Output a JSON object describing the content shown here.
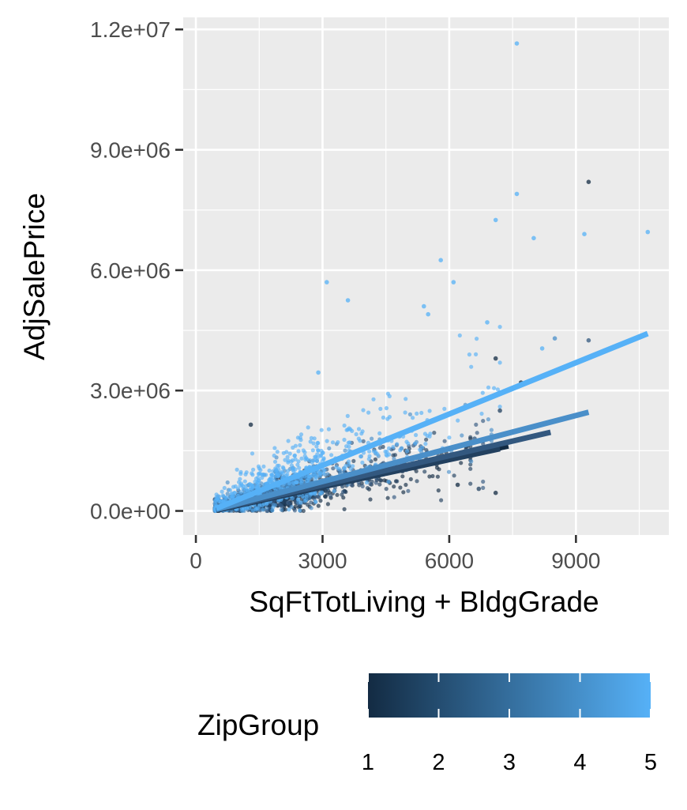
{
  "chart_data": {
    "type": "scatter",
    "xlabel": "SqFtTotLiving + BldgGrade",
    "ylabel": "AdjSalePrice",
    "xlim": [
      -300,
      11200
    ],
    "ylim": [
      -600000,
      12300000
    ],
    "x_ticks": [
      0,
      3000,
      6000,
      9000
    ],
    "x_tick_labels": [
      "0",
      "3000",
      "6000",
      "9000"
    ],
    "y_ticks": [
      0,
      3000000,
      6000000,
      9000000,
      12000000
    ],
    "y_tick_labels": [
      "0.0e+00",
      "3.0e+06",
      "6.0e+06",
      "9.0e+06",
      "1.2e+07"
    ],
    "grid": true,
    "legend": {
      "title": "ZipGroup",
      "type": "colorbar",
      "position": "bottom",
      "min": 1,
      "max": 5,
      "breaks": [
        1,
        2,
        3,
        4,
        5
      ],
      "break_labels": [
        "1",
        "2",
        "3",
        "4",
        "5"
      ],
      "color_low": "#132b43",
      "color_high": "#56b1f7"
    },
    "colors": {
      "panel": "#ebebeb",
      "grid": "#ffffff",
      "group_1": "#132b43",
      "group_2": "#22405f",
      "group_3": "#33587f",
      "group_4": "#4a8fc9",
      "group_5": "#56b1f7"
    },
    "trend_lines": [
      {
        "group": 1,
        "x": [
          480,
          7400
        ],
        "y": [
          20000,
          1620000
        ]
      },
      {
        "group": 2,
        "x": [
          480,
          7200
        ],
        "y": [
          30000,
          1550000
        ]
      },
      {
        "group": 3,
        "x": [
          480,
          8400
        ],
        "y": [
          30000,
          1960000
        ]
      },
      {
        "group": 4,
        "x": [
          480,
          9300
        ],
        "y": [
          40000,
          2460000
        ]
      },
      {
        "group": 5,
        "x": [
          480,
          10700
        ],
        "y": [
          60000,
          4420000
        ]
      }
    ],
    "outliers": [
      {
        "group": 5,
        "x": 7600,
        "y": 11650000
      },
      {
        "group": 1,
        "x": 9300,
        "y": 8200000
      },
      {
        "group": 5,
        "x": 7600,
        "y": 7900000
      },
      {
        "group": 5,
        "x": 7100,
        "y": 7250000
      },
      {
        "group": 5,
        "x": 10700,
        "y": 6950000
      },
      {
        "group": 5,
        "x": 9200,
        "y": 6900000
      },
      {
        "group": 5,
        "x": 8000,
        "y": 6800000
      },
      {
        "group": 5,
        "x": 5800,
        "y": 6250000
      },
      {
        "group": 5,
        "x": 3100,
        "y": 5700000
      },
      {
        "group": 5,
        "x": 6100,
        "y": 5700000
      },
      {
        "group": 5,
        "x": 3600,
        "y": 5250000
      },
      {
        "group": 5,
        "x": 5400,
        "y": 5100000
      },
      {
        "group": 5,
        "x": 5500,
        "y": 4900000
      },
      {
        "group": 5,
        "x": 6900,
        "y": 4700000
      },
      {
        "group": 4,
        "x": 8500,
        "y": 4300000
      },
      {
        "group": 3,
        "x": 9300,
        "y": 4250000
      },
      {
        "group": 5,
        "x": 8200,
        "y": 4050000
      },
      {
        "group": 1,
        "x": 7100,
        "y": 3800000
      },
      {
        "group": 5,
        "x": 2900,
        "y": 3450000
      },
      {
        "group": 1,
        "x": 1300,
        "y": 2150000
      },
      {
        "group": 1,
        "x": 7100,
        "y": 450000
      },
      {
        "group": 1,
        "x": 7700,
        "y": 3200000
      },
      {
        "group": 2,
        "x": 7200,
        "y": 2500000
      },
      {
        "group": 3,
        "x": 6600,
        "y": 1800000
      },
      {
        "group": 2,
        "x": 6400,
        "y": 1600000
      },
      {
        "group": 2,
        "x": 6700,
        "y": 550000
      },
      {
        "group": 1,
        "x": 6200,
        "y": 650000
      }
    ],
    "clusters": [
      {
        "group": 1,
        "n": 380,
        "x_min": 450,
        "x_max": 6500,
        "x_center": 2300,
        "slope": 215,
        "intercept": -90000,
        "spread": 230000
      },
      {
        "group": 2,
        "n": 300,
        "x_min": 450,
        "x_max": 6500,
        "x_center": 2400,
        "slope": 235,
        "intercept": -70000,
        "spread": 260000
      },
      {
        "group": 3,
        "n": 280,
        "x_min": 450,
        "x_max": 6800,
        "x_center": 2500,
        "slope": 260,
        "intercept": -60000,
        "spread": 300000
      },
      {
        "group": 4,
        "n": 240,
        "x_min": 450,
        "x_max": 7000,
        "x_center": 2500,
        "slope": 300,
        "intercept": -50000,
        "spread": 340000
      },
      {
        "group": 5,
        "n": 520,
        "x_min": 450,
        "x_max": 7200,
        "x_center": 2600,
        "slope": 420,
        "intercept": -40000,
        "spread": 500000
      }
    ]
  }
}
